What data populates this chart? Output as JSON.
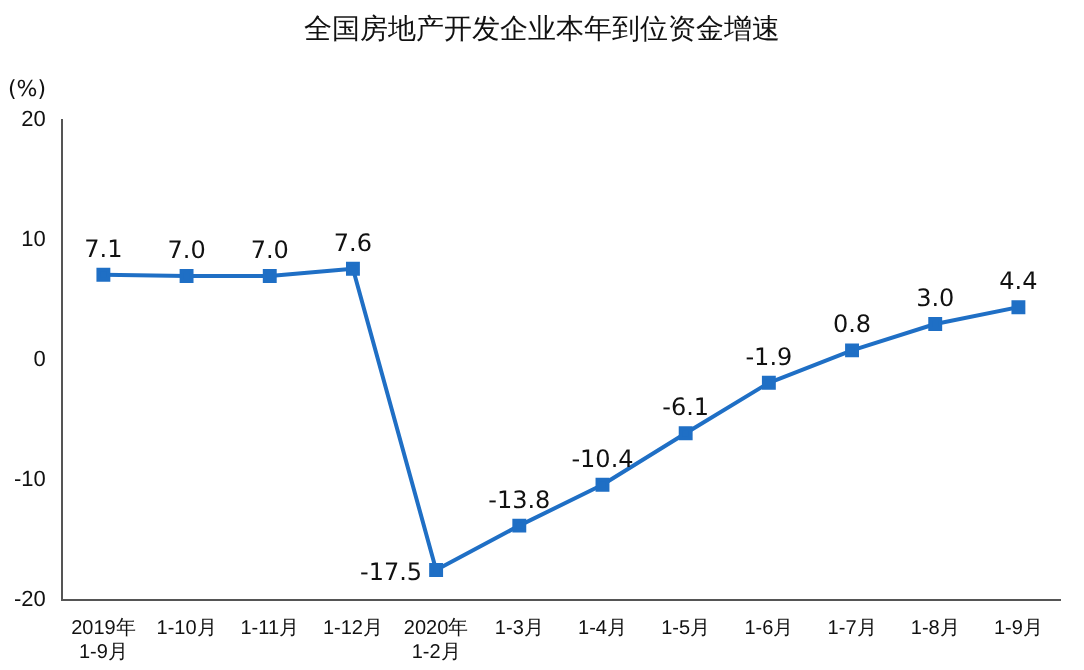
{
  "chart_data": {
    "type": "line",
    "title": "全国房地产开发企业本年到位资金增速",
    "ylabel": "(%)",
    "categories": [
      "2019年\n1-9月",
      "1-10月",
      "1-11月",
      "1-12月",
      "2020年\n1-2月",
      "1-3月",
      "1-4月",
      "1-5月",
      "1-6月",
      "1-7月",
      "1-8月",
      "1-9月"
    ],
    "series": [
      {
        "color": "#1f6fc5",
        "values": [
          7.1,
          7.0,
          7.0,
          7.6,
          -17.5,
          -13.8,
          -10.4,
          -6.1,
          -1.9,
          0.8,
          3.0,
          4.4
        ],
        "value_labels": [
          "7.1",
          "7.0",
          "7.0",
          "7.6",
          "-17.5",
          "-13.8",
          "-10.4",
          "-6.1",
          "-1.9",
          "0.8",
          "3.0",
          "4.4"
        ]
      }
    ],
    "ylim": [
      -20,
      20
    ],
    "yticks": [
      -20,
      -10,
      0,
      10,
      20
    ],
    "grid": false,
    "legend": false,
    "marker": "square",
    "line_style": "solid",
    "data_labels": true
  }
}
